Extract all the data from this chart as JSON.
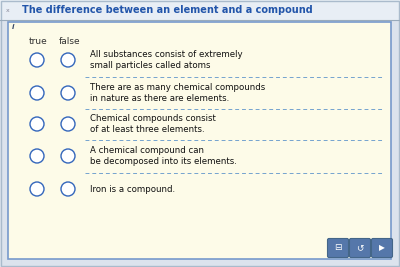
{
  "title": "The difference between an element and a compound",
  "bg_outer": "#dce3ed",
  "bg_inner": "#fdfbe8",
  "title_color": "#2255aa",
  "title_fontsize": 7.0,
  "header_true": "true",
  "header_false": "false",
  "header_color": "#333333",
  "header_fontsize": 6.5,
  "items": [
    "All substances consist of extremely\nsmall particles called atoms",
    "There are as many chemical compounds\nin nature as there are elements.",
    "Chemical compounds consist\nof at least three elements.",
    "A chemical compound can\nbe decomposed into its elements.",
    "Iron is a compound."
  ],
  "circle_color": "#3366bb",
  "circle_lw": 1.0,
  "separator_color": "#6699cc",
  "separator_alpha": 0.9,
  "text_color": "#111111",
  "item_fontsize": 6.2,
  "border_color": "#7799cc",
  "title_bar_color": "#e8eef5",
  "title_line_color": "#99aabb",
  "x_icon_color": "#888899",
  "i_icon_color": "#334466",
  "icon_bg": "#5577aa",
  "icon_fg": "#ffffff"
}
